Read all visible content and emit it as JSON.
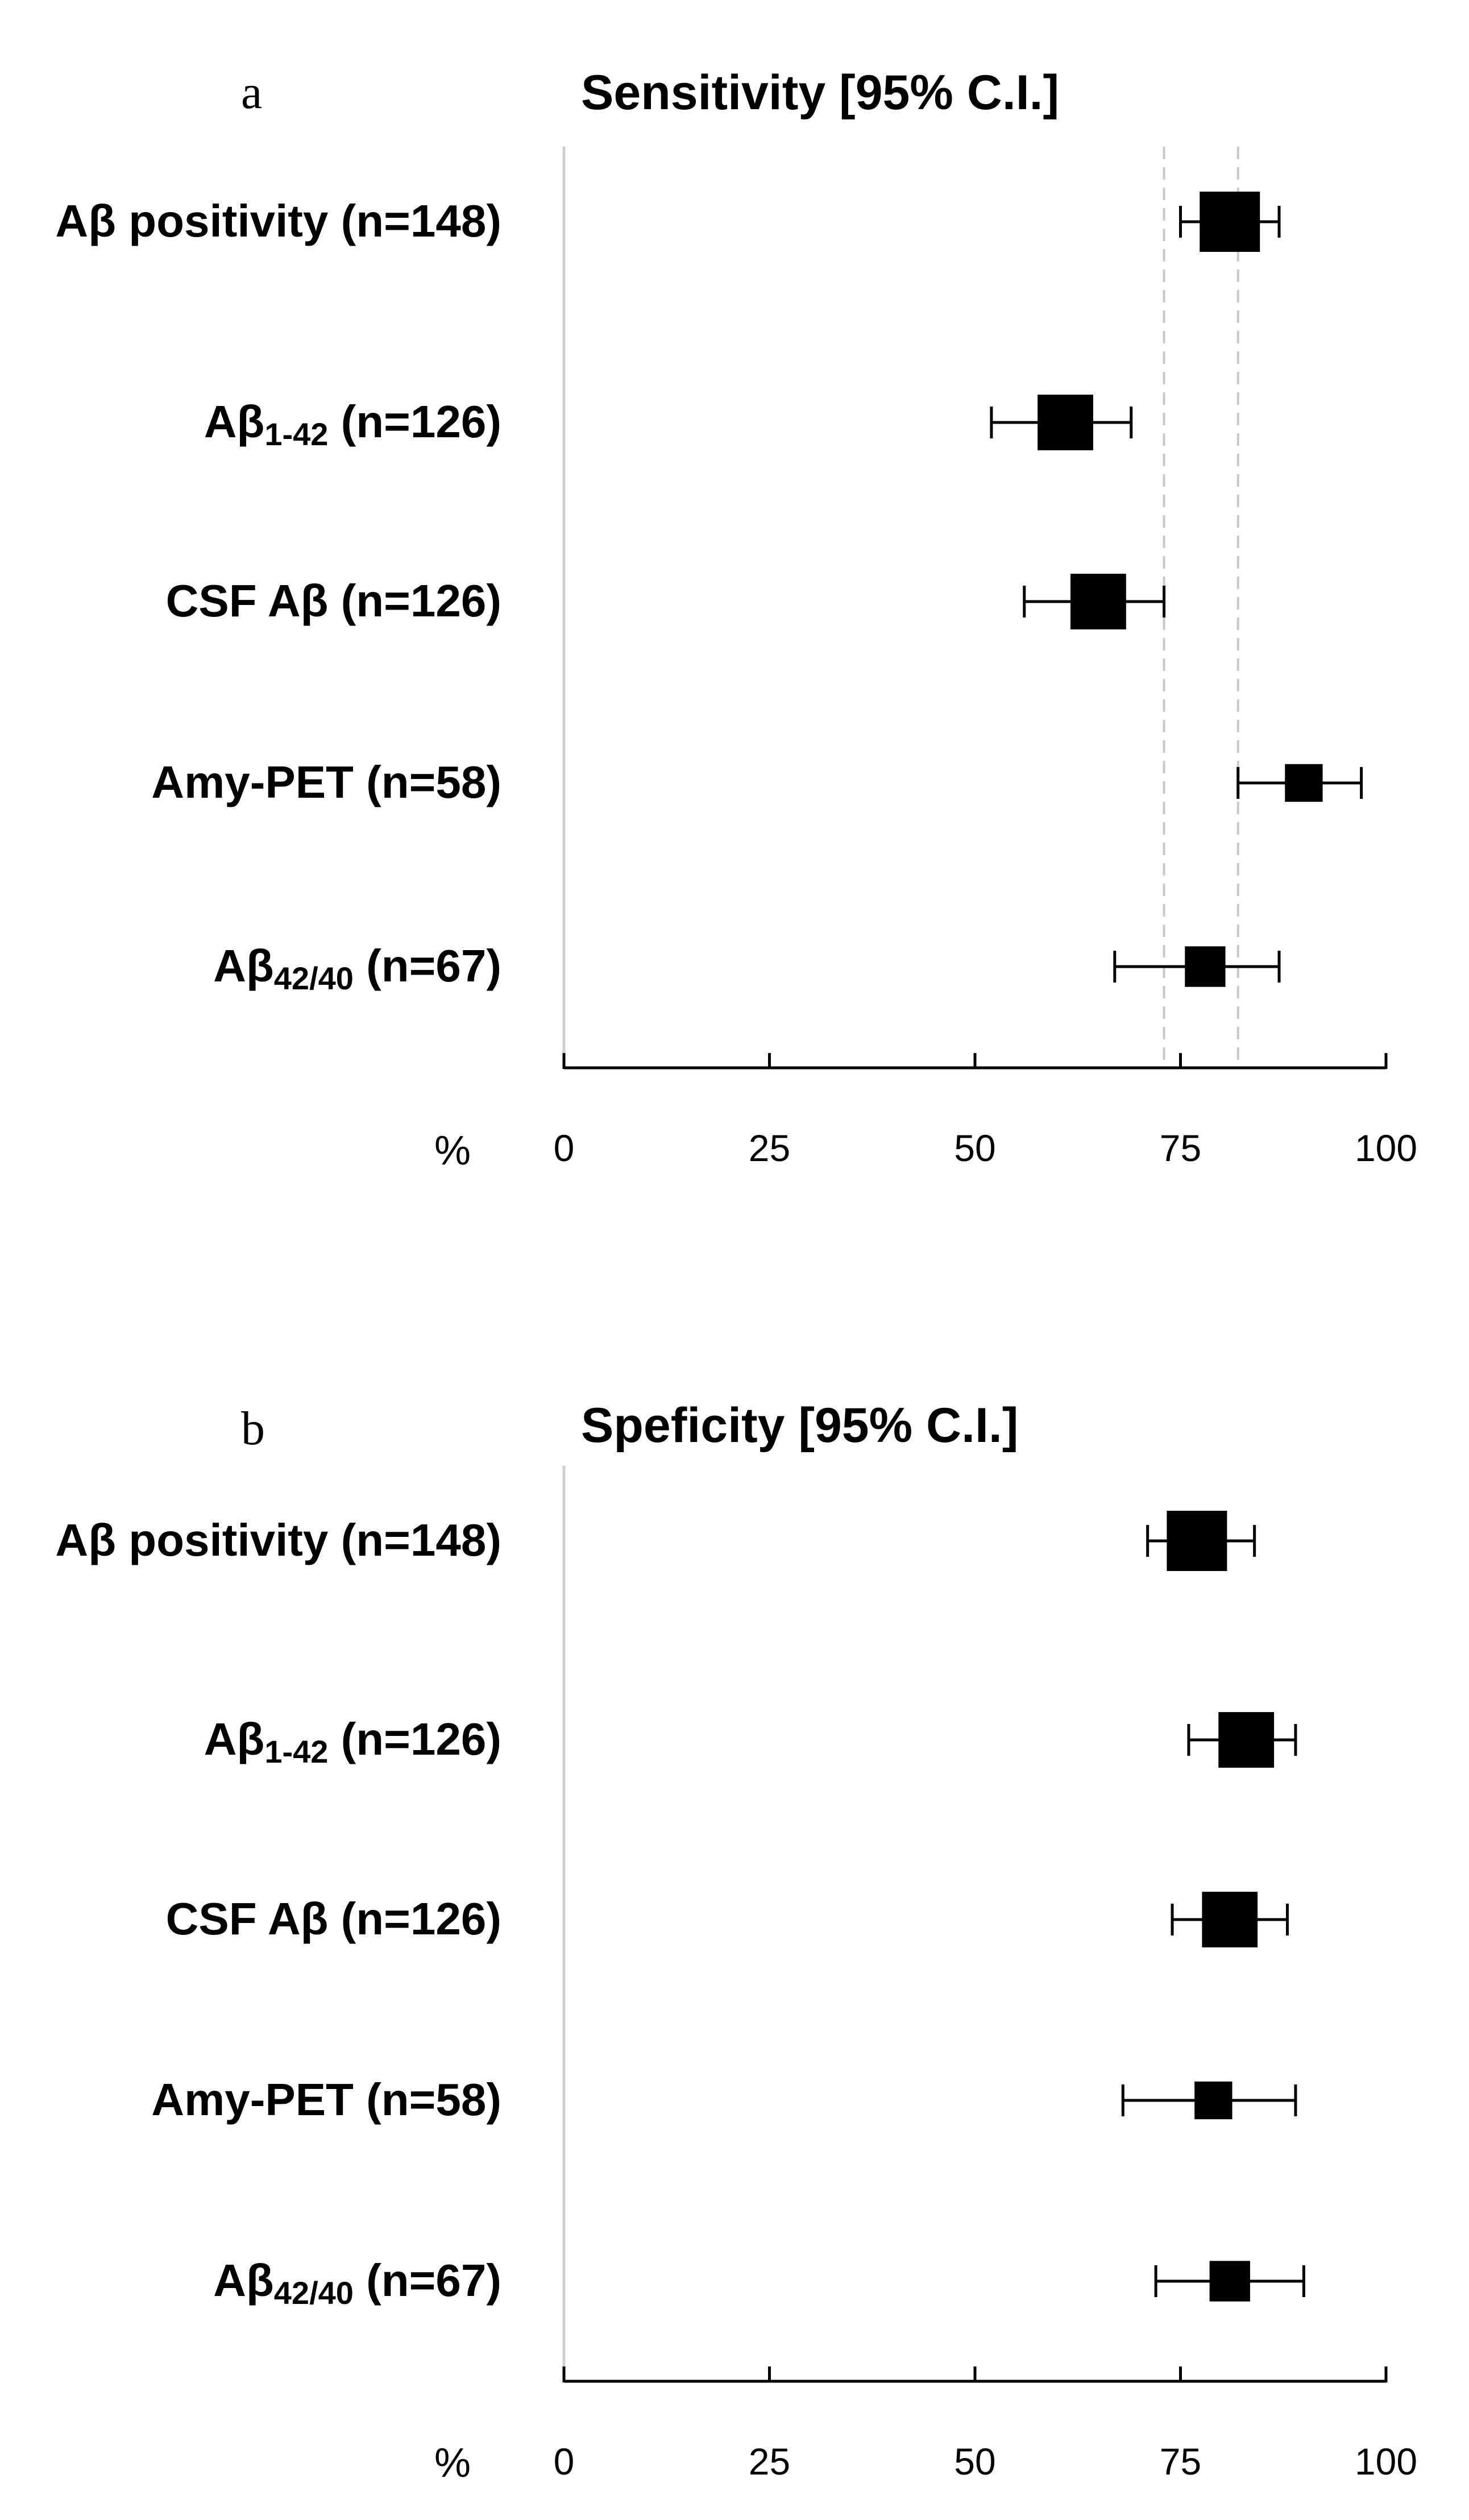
{
  "chart_data": [
    {
      "type": "forest",
      "panel_label": "a",
      "title": "Sensitivity [95% C.I.]",
      "axis_unit": "%",
      "xlim": [
        0,
        100
      ],
      "xticks": [
        0,
        25,
        50,
        75,
        100
      ],
      "tick_labels": [
        "0",
        "25",
        "50",
        "75",
        "100"
      ],
      "reference_lines": [
        73,
        82
      ],
      "rows": [
        {
          "label": "Aβ positivity (n=148)",
          "base": "Aβ positivity",
          "sub": "",
          "rest": " (n=148)",
          "estimate": 81,
          "ci_low": 75,
          "ci_high": 87,
          "n": 148
        },
        {
          "label": "Aβ1-42 (n=126)",
          "base": "Aβ",
          "sub": "1-42",
          "rest": " (n=126)",
          "estimate": 61,
          "ci_low": 52,
          "ci_high": 69,
          "n": 126
        },
        {
          "label": "CSF Aβ (n=126)",
          "base": "CSF Aβ",
          "sub": "",
          "rest": " (n=126)",
          "estimate": 65,
          "ci_low": 56,
          "ci_high": 73,
          "n": 126
        },
        {
          "label": "Amy-PET (n=58)",
          "base": "Amy-PET",
          "sub": "",
          "rest": " (n=58)",
          "estimate": 90,
          "ci_low": 82,
          "ci_high": 97,
          "n": 58
        },
        {
          "label": "Aβ42/40 (n=67)",
          "base": "Aβ",
          "sub": "42/40",
          "rest": " (n=67)",
          "estimate": 78,
          "ci_low": 67,
          "ci_high": 87,
          "n": 67
        }
      ]
    },
    {
      "type": "forest",
      "panel_label": "b",
      "title": "Speficity [95% C.I.]",
      "axis_unit": "%",
      "xlim": [
        0,
        100
      ],
      "xticks": [
        0,
        25,
        50,
        75,
        100
      ],
      "tick_labels": [
        "0",
        "25",
        "50",
        "75",
        "100"
      ],
      "reference_lines": [],
      "rows": [
        {
          "label": "Aβ positivity (n=148)",
          "base": "Aβ positivity",
          "sub": "",
          "rest": " (n=148)",
          "estimate": 77,
          "ci_low": 71,
          "ci_high": 84,
          "n": 148
        },
        {
          "label": "Aβ1-42 (n=126)",
          "base": "Aβ",
          "sub": "1-42",
          "rest": " (n=126)",
          "estimate": 83,
          "ci_low": 76,
          "ci_high": 89,
          "n": 126
        },
        {
          "label": "CSF Aβ (n=126)",
          "base": "CSF Aβ",
          "sub": "",
          "rest": " (n=126)",
          "estimate": 81,
          "ci_low": 74,
          "ci_high": 88,
          "n": 126
        },
        {
          "label": "Amy-PET (n=58)",
          "base": "Amy-PET",
          "sub": "",
          "rest": " (n=58)",
          "estimate": 79,
          "ci_low": 68,
          "ci_high": 89,
          "n": 58
        },
        {
          "label": "Aβ42/40 (n=67)",
          "base": "Aβ",
          "sub": "42/40",
          "rest": " (n=67)",
          "estimate": 81,
          "ci_low": 72,
          "ci_high": 90,
          "n": 67
        }
      ]
    }
  ]
}
